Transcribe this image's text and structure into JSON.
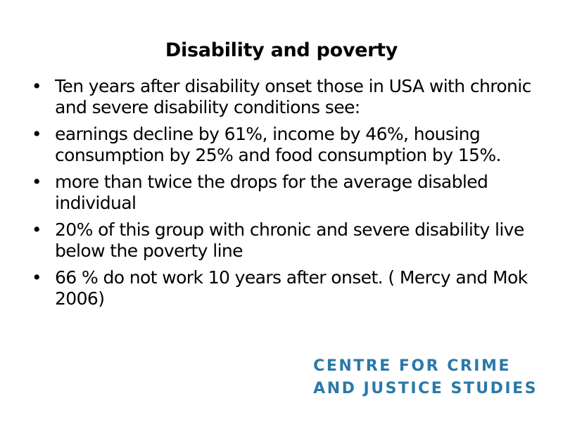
{
  "slide": {
    "title": "Disability and poverty",
    "bullet_marker": "•",
    "bullets": [
      "Ten years after disability onset those in USA with chronic and severe disability conditions see:",
      "earnings decline by 61%, income by 46%, housing consumption by 25% and food consumption by 15%.",
      "more than twice the drops for the average disabled individual",
      "20% of this group with chronic and severe disability live below the poverty line",
      "66 % do not work 10 years after onset. ( Mercy and Mok 2006)"
    ]
  },
  "logo": {
    "line1": "CENTRE FOR CRIME",
    "line2": "AND JUSTICE STUDIES",
    "color": "#2a79a8"
  }
}
